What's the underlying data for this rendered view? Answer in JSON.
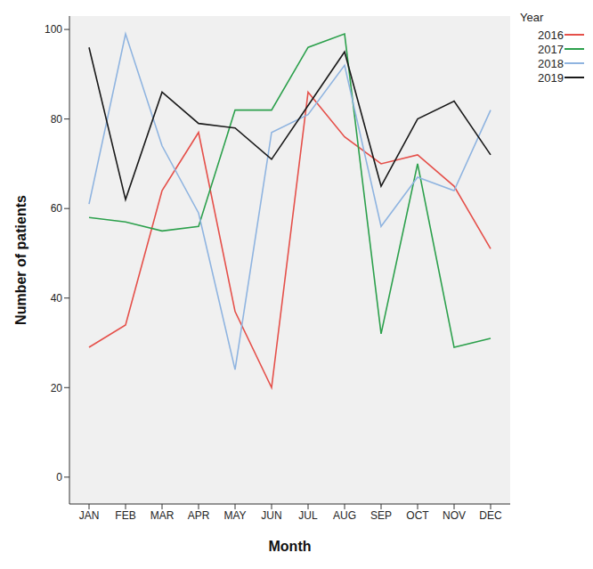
{
  "chart_data": {
    "type": "line",
    "x_label": "Month",
    "y_label": "Number of patients",
    "legend_title": "Year",
    "legend": "top right",
    "grid": false,
    "categories": [
      "JAN",
      "FEB",
      "MAR",
      "APR",
      "MAY",
      "JUN",
      "JUL",
      "AUG",
      "SEP",
      "OCT",
      "NOV",
      "DEC"
    ],
    "ylim": [
      -6,
      103
    ],
    "yticks": [
      0,
      20,
      40,
      60,
      80,
      100
    ],
    "series": [
      {
        "name": "2016",
        "color": "#e5504a",
        "values": [
          29,
          34,
          64,
          77,
          37,
          20,
          86,
          76,
          70,
          72,
          65,
          51
        ]
      },
      {
        "name": "2017",
        "color": "#2ca04c",
        "values": [
          58,
          57,
          55,
          56,
          82,
          82,
          96,
          99,
          32,
          70,
          29,
          31
        ]
      },
      {
        "name": "2018",
        "color": "#8fb4e0",
        "values": [
          61,
          99,
          74,
          59,
          24,
          77,
          81,
          92,
          56,
          67,
          64,
          82
        ]
      },
      {
        "name": "2019",
        "color": "#1a1a1a",
        "values": [
          96,
          62,
          86,
          79,
          78,
          71,
          83,
          95,
          65,
          80,
          84,
          72
        ]
      }
    ]
  }
}
